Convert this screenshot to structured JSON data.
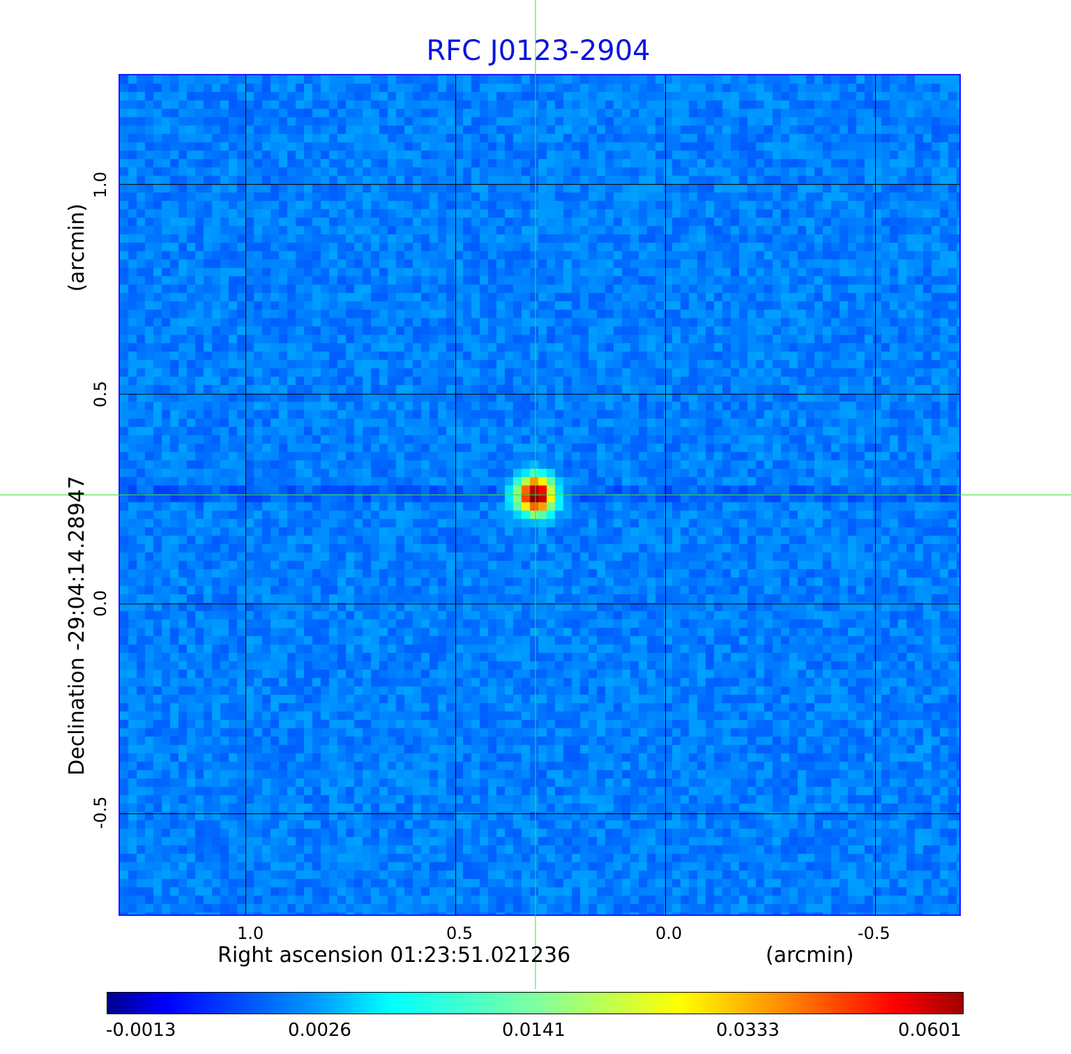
{
  "chart_data": {
    "type": "heatmap",
    "title": "RFC J0123-2904",
    "xlabel": "Right ascension  01:23:51.021236",
    "xunit": "(arcmin)",
    "ylabel": "Declination  -29:04:14.28947",
    "yunit": "(arcmin)",
    "xlim": [
      1.3,
      -0.7
    ],
    "ylim": [
      -0.74,
      1.26
    ],
    "xticks": [
      "1.0",
      "0.5",
      "0.0",
      "-0.5"
    ],
    "yticks": [
      "1.0",
      "0.5",
      "0.0",
      "-0.5"
    ],
    "grid": true,
    "colormap": "jet",
    "colorbar": {
      "ticks": [
        "-0.0013",
        "0.0026",
        "0.0141",
        "0.0333",
        "0.0601"
      ],
      "min": -0.0013,
      "max": 0.0601
    },
    "source_peak": {
      "x": 0.31,
      "y": 0.26,
      "value": 0.0601
    },
    "crosshair": {
      "x": 0.31,
      "y": 0.26,
      "color": "#3cdc3c"
    },
    "grid_color": "#000000",
    "title_color": "#0b14e0"
  }
}
